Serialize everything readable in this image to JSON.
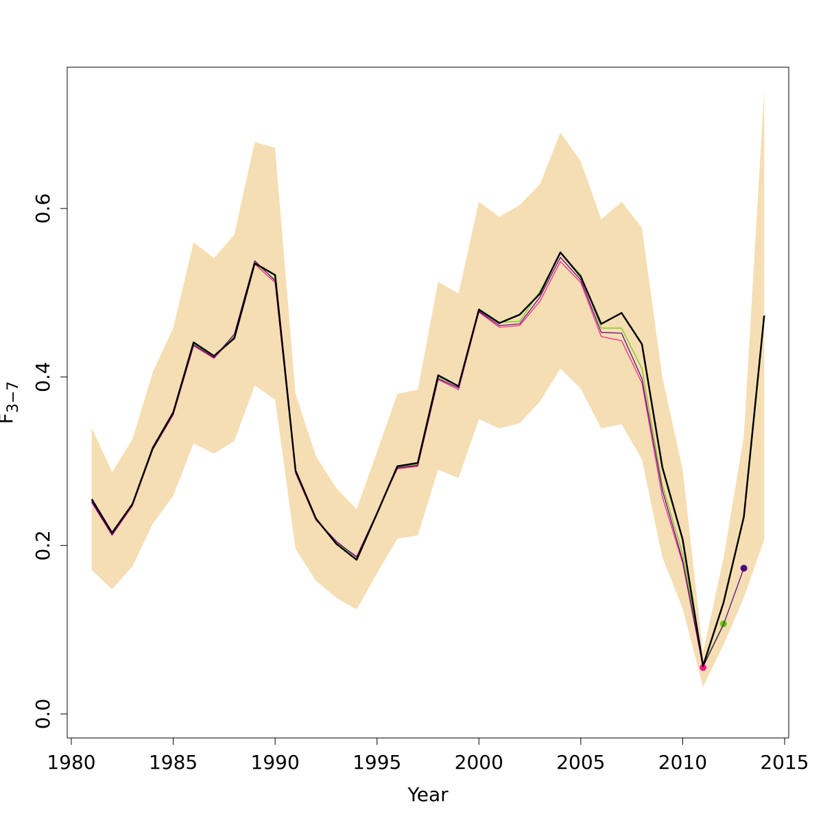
{
  "chart_data": {
    "type": "line",
    "xlabel": "Year",
    "ylabel_main": "F",
    "ylabel_sub": "3−7",
    "xlim": [
      1980,
      2015
    ],
    "ylim": [
      0,
      0.76
    ],
    "x_ticks": [
      1980,
      1985,
      1990,
      1995,
      2000,
      2005,
      2010,
      2015
    ],
    "y_ticks": [
      0.0,
      0.2,
      0.4,
      0.6
    ],
    "y_tick_labels": [
      "0.0",
      "0.2",
      "0.4",
      "0.6"
    ],
    "grid": false,
    "colors": {
      "band": "#f5deb3",
      "main": "#000000",
      "retro_1": "#ff1493",
      "retro_2": "#66cc00",
      "retro_3": "#4b0082"
    },
    "confidence_band": {
      "x": [
        1981,
        1982,
        1983,
        1984,
        1985,
        1986,
        1987,
        1988,
        1989,
        1990,
        1991,
        1992,
        1993,
        1994,
        1995,
        1996,
        1997,
        1998,
        1999,
        2000,
        2001,
        2002,
        2003,
        2004,
        2005,
        2006,
        2007,
        2008,
        2009,
        2010,
        2011,
        2012,
        2013,
        2014
      ],
      "upper": [
        0.34,
        0.287,
        0.326,
        0.406,
        0.458,
        0.56,
        0.541,
        0.569,
        0.679,
        0.672,
        0.38,
        0.306,
        0.268,
        0.243,
        0.311,
        0.38,
        0.385,
        0.513,
        0.499,
        0.608,
        0.59,
        0.604,
        0.629,
        0.69,
        0.656,
        0.587,
        0.608,
        0.577,
        0.4,
        0.29,
        0.073,
        0.185,
        0.33,
        0.74
      ],
      "lower": [
        0.171,
        0.148,
        0.175,
        0.226,
        0.259,
        0.321,
        0.309,
        0.324,
        0.39,
        0.373,
        0.196,
        0.158,
        0.138,
        0.124,
        0.167,
        0.208,
        0.212,
        0.29,
        0.28,
        0.35,
        0.339,
        0.345,
        0.371,
        0.41,
        0.386,
        0.339,
        0.344,
        0.302,
        0.186,
        0.125,
        0.032,
        0.082,
        0.138,
        0.207
      ]
    },
    "series": [
      {
        "color": "#000000",
        "width": 2.5,
        "x": [
          1981,
          1982,
          1983,
          1984,
          1985,
          1986,
          1987,
          1988,
          1989,
          1990,
          1991,
          1992,
          1993,
          1994,
          1995,
          1996,
          1997,
          1998,
          1999,
          2000,
          2001,
          2002,
          2003,
          2004,
          2005,
          2006,
          2007,
          2008,
          2009,
          2010,
          2011,
          2012,
          2013,
          2014
        ],
        "values": [
          0.255,
          0.215,
          0.249,
          0.316,
          0.358,
          0.441,
          0.425,
          0.446,
          0.535,
          0.521,
          0.289,
          0.232,
          0.202,
          0.183,
          0.238,
          0.294,
          0.298,
          0.402,
          0.389,
          0.48,
          0.464,
          0.474,
          0.499,
          0.548,
          0.519,
          0.463,
          0.476,
          0.439,
          0.293,
          0.207,
          0.057,
          0.132,
          0.234,
          0.473
        ]
      },
      {
        "color": "#ff1493",
        "width": 1.2,
        "marker": "end",
        "x": [
          1981,
          1982,
          1983,
          1984,
          1985,
          1986,
          1987,
          1988,
          1989,
          1990,
          1991,
          1992,
          1993,
          1994,
          1995,
          1996,
          1997,
          1998,
          1999,
          2000,
          2001,
          2002,
          2003,
          2004,
          2005,
          2006,
          2007,
          2008,
          2009,
          2010,
          2011
        ],
        "values": [
          0.251,
          0.212,
          0.247,
          0.314,
          0.355,
          0.437,
          0.422,
          0.449,
          0.534,
          0.512,
          0.286,
          0.23,
          0.204,
          0.187,
          0.239,
          0.291,
          0.294,
          0.397,
          0.385,
          0.477,
          0.459,
          0.461,
          0.49,
          0.537,
          0.512,
          0.448,
          0.443,
          0.393,
          0.258,
          0.179,
          0.055
        ]
      },
      {
        "color": "#66cc00",
        "width": 1.2,
        "marker": "end",
        "x": [
          1981,
          1982,
          1983,
          1984,
          1985,
          1986,
          1987,
          1988,
          1989,
          1990,
          1991,
          1992,
          1993,
          1994,
          1995,
          1996,
          1997,
          1998,
          1999,
          2000,
          2001,
          2002,
          2003,
          2004,
          2005,
          2006,
          2007,
          2008,
          2009,
          2010,
          2011,
          2012
        ],
        "values": [
          0.253,
          0.214,
          0.248,
          0.315,
          0.357,
          0.439,
          0.424,
          0.448,
          0.535,
          0.516,
          0.288,
          0.231,
          0.203,
          0.186,
          0.239,
          0.293,
          0.296,
          0.4,
          0.389,
          0.481,
          0.465,
          0.466,
          0.502,
          0.547,
          0.521,
          0.458,
          0.458,
          0.41,
          0.272,
          0.19,
          0.058,
          0.107
        ]
      },
      {
        "color": "#4b0082",
        "width": 1.2,
        "marker": "end",
        "x": [
          1981,
          1982,
          1983,
          1984,
          1985,
          1986,
          1987,
          1988,
          1989,
          1990,
          1991,
          1992,
          1993,
          1994,
          1995,
          1996,
          1997,
          1998,
          1999,
          2000,
          2001,
          2002,
          2003,
          2004,
          2005,
          2006,
          2007,
          2008,
          2009,
          2010,
          2011,
          2012,
          2013
        ],
        "values": [
          0.252,
          0.213,
          0.248,
          0.314,
          0.356,
          0.438,
          0.423,
          0.451,
          0.538,
          0.514,
          0.287,
          0.231,
          0.205,
          0.186,
          0.239,
          0.292,
          0.295,
          0.398,
          0.387,
          0.478,
          0.461,
          0.463,
          0.495,
          0.542,
          0.515,
          0.453,
          0.452,
          0.398,
          0.266,
          0.182,
          0.056,
          0.106,
          0.173
        ]
      }
    ]
  }
}
